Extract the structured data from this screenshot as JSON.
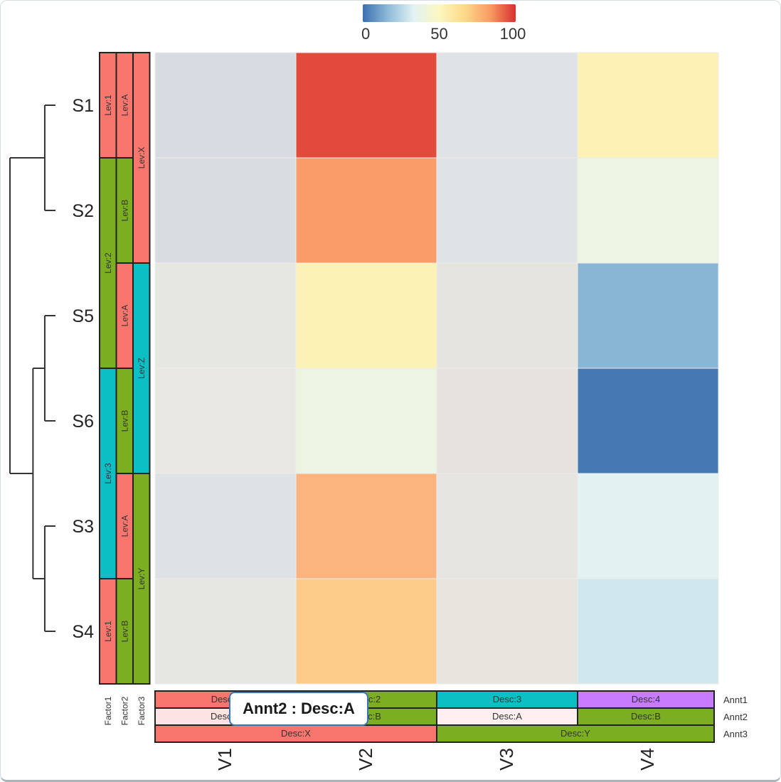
{
  "chart_data": {
    "type": "heatmap",
    "title": "",
    "columns": [
      "V1",
      "V2",
      "V3",
      "V4"
    ],
    "rows": [
      "S1",
      "S2",
      "S5",
      "S6",
      "S3",
      "S4"
    ],
    "values": [
      [
        40,
        95,
        42,
        55
      ],
      [
        40,
        80,
        42,
        48
      ],
      [
        44,
        55,
        45,
        18
      ],
      [
        45,
        48,
        45,
        3
      ],
      [
        42,
        75,
        44,
        38
      ],
      [
        44,
        68,
        45,
        33
      ]
    ],
    "cell_colors": [
      [
        "#d8dce2",
        "#e24b3b",
        "#dfe3e6",
        "#fdf1b6"
      ],
      [
        "#d9dde2",
        "#fa9c6a",
        "#e0e3e5",
        "#ebf5e1"
      ],
      [
        "#e7e7e2",
        "#fdf2b6",
        "#e6e4de",
        "#8ab6d6"
      ],
      [
        "#e8e7e1",
        "#ebf5e1",
        "#e6e2dd",
        "#4679b2"
      ],
      [
        "#dfe2e4",
        "#fcb47e",
        "#e6e5e0",
        "#e2f2f1"
      ],
      [
        "#e6e6e3",
        "#fdcb8a",
        "#e8e5df",
        "#d0e7ee"
      ]
    ],
    "colorbar": {
      "ticks": [
        "0",
        "50",
        "100"
      ],
      "range": [
        0,
        100
      ],
      "colors": [
        "#3b6fb1",
        "#8fbcd9",
        "#e3f2f3",
        "#fbf7c0",
        "#fdd98a",
        "#f99b63",
        "#d8302f"
      ],
      "placement": "top"
    },
    "dendrogram": {
      "side": "left",
      "merges": [
        {
          "left": "S1",
          "right": "S2",
          "height": 0.2
        },
        {
          "left": "S5",
          "right": "S6",
          "height": 0.2
        },
        {
          "left": "S3",
          "right": "S4",
          "height": 0.2
        },
        {
          "left": "S5S6",
          "right": "S3S4",
          "height": 0.42
        },
        {
          "left": "S1S2",
          "right": "S5S6S3S4",
          "height": 0.85
        }
      ]
    },
    "row_annotations": {
      "labels": [
        "Factor1",
        "Factor2",
        "Factor3"
      ],
      "tracks": [
        [
          {
            "label": "Lev:1",
            "span": 1,
            "color": "#f8766d"
          },
          {
            "label": "Lev:2",
            "span": 2,
            "color": "#7cae22"
          },
          {
            "label": "Lev:3",
            "span": 2,
            "color": "#0cbfc4"
          },
          {
            "label": "Lev:1",
            "span": 1,
            "color": "#f8766d"
          }
        ],
        [
          {
            "label": "Lev:A",
            "span": 1,
            "color": "#f8766d"
          },
          {
            "label": "Lev:B",
            "span": 1,
            "color": "#7cae22"
          },
          {
            "label": "Lev:A",
            "span": 1,
            "color": "#f8766d"
          },
          {
            "label": "Lev:B",
            "span": 1,
            "color": "#7cae22"
          },
          {
            "label": "Lev:A",
            "span": 1,
            "color": "#f8766d"
          },
          {
            "label": "Lev:B",
            "span": 1,
            "color": "#7cae22"
          }
        ],
        [
          {
            "label": "Lev:X",
            "span": 2,
            "color": "#f8766d"
          },
          {
            "label": "Lev:Z",
            "span": 2,
            "color": "#0cbfc4"
          },
          {
            "label": "Lev:Y",
            "span": 2,
            "color": "#7cae22"
          }
        ]
      ]
    },
    "col_annotations": {
      "labels": [
        "Annt1",
        "Annt2",
        "Annt3"
      ],
      "tracks": [
        [
          {
            "label": "Desc:1",
            "span": 1,
            "color": "#f8766d"
          },
          {
            "label": "Desc:2",
            "span": 1,
            "color": "#7cae22"
          },
          {
            "label": "Desc:3",
            "span": 1,
            "color": "#0cbfc4"
          },
          {
            "label": "Desc:4",
            "span": 1,
            "color": "#c77cff"
          }
        ],
        [
          {
            "label": "Desc:A",
            "span": 1,
            "color": "#fde3e3"
          },
          {
            "label": "Desc:B",
            "span": 1,
            "color": "#7cae22"
          },
          {
            "label": "Desc:A",
            "span": 1,
            "color": "#fff0ef"
          },
          {
            "label": "Desc:B",
            "span": 1,
            "color": "#7cae22"
          }
        ],
        [
          {
            "label": "Desc:X",
            "span": 2,
            "color": "#f8766d"
          },
          {
            "label": "Desc:Y",
            "span": 2,
            "color": "#7cae22"
          }
        ]
      ]
    }
  },
  "tooltip": {
    "text": "Annt2 : Desc:A"
  }
}
